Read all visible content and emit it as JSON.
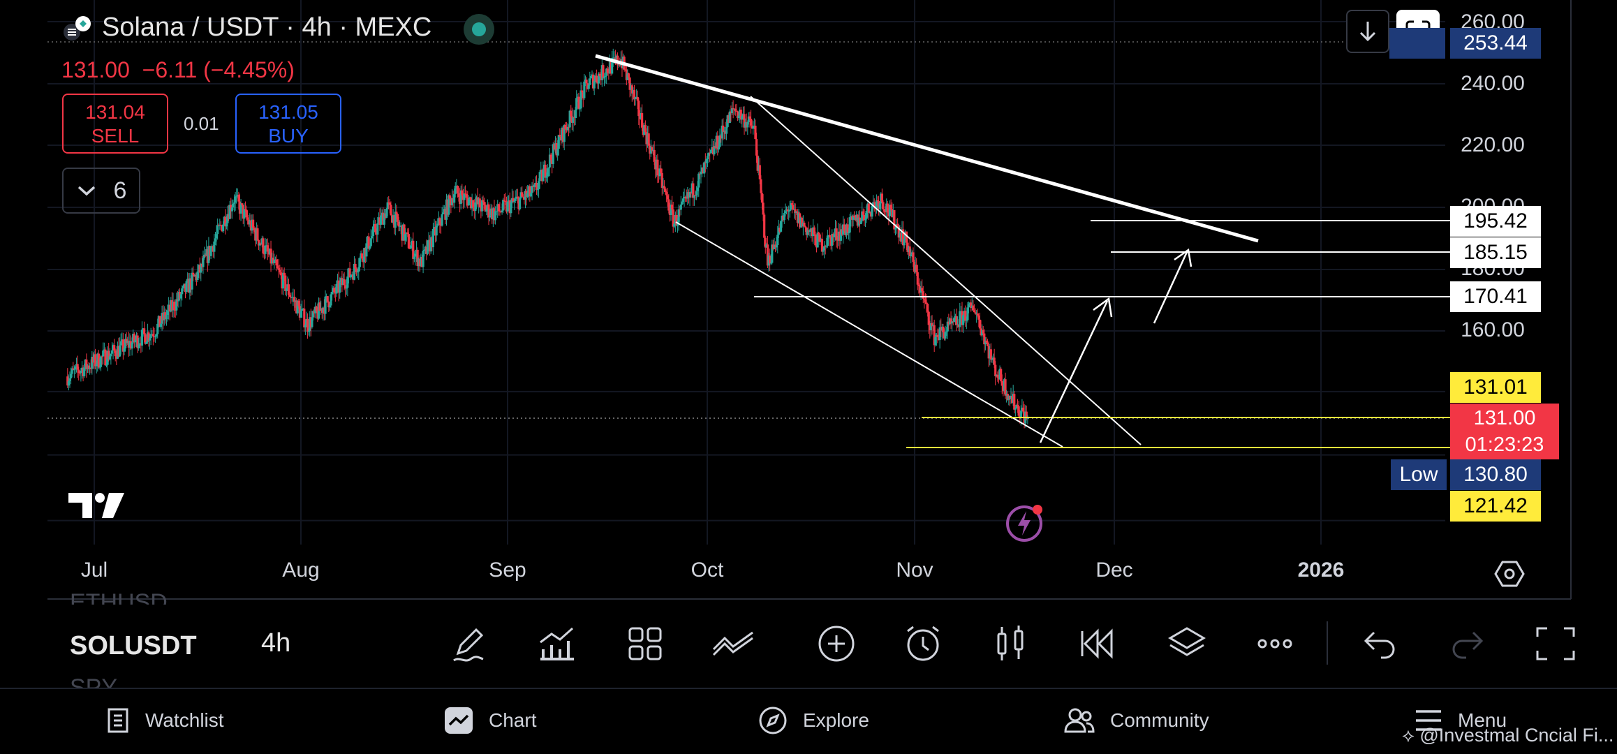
{
  "header": {
    "title": "Solana / USDT · 4h · MEXC",
    "last": "131.00",
    "change": "−6.11",
    "change_pct": "(−4.45%)"
  },
  "trade": {
    "sell_price": "131.04",
    "sell_label": "SELL",
    "buy_price": "131.05",
    "buy_label": "BUY",
    "spread": "0.01"
  },
  "indicators": {
    "count": "6"
  },
  "price_axis": {
    "labels": [
      "260.00",
      "240.00",
      "220.00",
      "200.00",
      "180.00",
      "160.00"
    ]
  },
  "price_tags": {
    "high": "253.44",
    "level_1": "195.42",
    "level_2": "185.15",
    "level_3": "170.41",
    "support_1": "131.01",
    "current_price": "131.00",
    "countdown": "01:23:23",
    "low_label": "Low",
    "low": "130.80",
    "support_2": "121.42"
  },
  "time_axis": [
    "Jul",
    "Aug",
    "Sep",
    "Oct",
    "Nov",
    "Dec",
    "2026"
  ],
  "symbols": {
    "prev": "ETHUSD",
    "current": "SOLUSDT",
    "next": "SPY",
    "timeframe": "4h"
  },
  "toolbar": [
    "pencil-icon",
    "indicators-icon",
    "templates-icon",
    "compare-icon",
    "add-icon",
    "alert-icon",
    "candles-icon",
    "replay-icon",
    "layers-icon",
    "more-icon",
    "undo-icon",
    "redo-icon",
    "fullscreen-icon"
  ],
  "bottom_nav": {
    "watchlist": "Watchlist",
    "chart": "Chart",
    "explore": "Explore",
    "community": "Community",
    "menu": "Menu"
  },
  "watermark": "@Investmal Cncial Fi...",
  "colors": {
    "up": "#26a69a",
    "down": "#f23645",
    "buy": "#2962ff",
    "tag_yellow": "#ffeb3b",
    "tag_navy": "#1e3a78"
  },
  "chart_data": {
    "type": "candlestick",
    "symbol": "Solana / USDT",
    "timeframe": "4h",
    "x_ticks": [
      "Jul",
      "Aug",
      "Sep",
      "Oct",
      "Nov",
      "Dec",
      "2026"
    ],
    "y_ticks": [
      160,
      180,
      200,
      220,
      240,
      260
    ],
    "approx_close_path": [
      {
        "date": "2025-06-27",
        "price": 145
      },
      {
        "date": "2025-07-03",
        "price": 152
      },
      {
        "date": "2025-07-10",
        "price": 160
      },
      {
        "date": "2025-07-17",
        "price": 180
      },
      {
        "date": "2025-07-22",
        "price": 203
      },
      {
        "date": "2025-07-27",
        "price": 185
      },
      {
        "date": "2025-08-02",
        "price": 162
      },
      {
        "date": "2025-08-09",
        "price": 180
      },
      {
        "date": "2025-08-14",
        "price": 200
      },
      {
        "date": "2025-08-19",
        "price": 182
      },
      {
        "date": "2025-08-24",
        "price": 205
      },
      {
        "date": "2025-08-30",
        "price": 198
      },
      {
        "date": "2025-09-05",
        "price": 205
      },
      {
        "date": "2025-09-13",
        "price": 240
      },
      {
        "date": "2025-09-18",
        "price": 248
      },
      {
        "date": "2025-09-22",
        "price": 222
      },
      {
        "date": "2025-09-26",
        "price": 195
      },
      {
        "date": "2025-09-30",
        "price": 210
      },
      {
        "date": "2025-10-05",
        "price": 232
      },
      {
        "date": "2025-10-08",
        "price": 225
      },
      {
        "date": "2025-10-10",
        "price": 182
      },
      {
        "date": "2025-10-13",
        "price": 200
      },
      {
        "date": "2025-10-18",
        "price": 188
      },
      {
        "date": "2025-10-23",
        "price": 195
      },
      {
        "date": "2025-10-27",
        "price": 203
      },
      {
        "date": "2025-10-31",
        "price": 188
      },
      {
        "date": "2025-11-04",
        "price": 158
      },
      {
        "date": "2025-11-07",
        "price": 162
      },
      {
        "date": "2025-11-10",
        "price": 168
      },
      {
        "date": "2025-11-13",
        "price": 148
      },
      {
        "date": "2025-11-16",
        "price": 136
      },
      {
        "date": "2025-11-18",
        "price": 131
      }
    ],
    "annotations": {
      "horizontal_levels": [
        195.42,
        185.15,
        170.41,
        131.01,
        121.42
      ],
      "descending_trendlines": true,
      "projected_arrows": 2
    },
    "last_price": 131.0,
    "high": 253.44,
    "low": 130.8,
    "grid": true
  }
}
